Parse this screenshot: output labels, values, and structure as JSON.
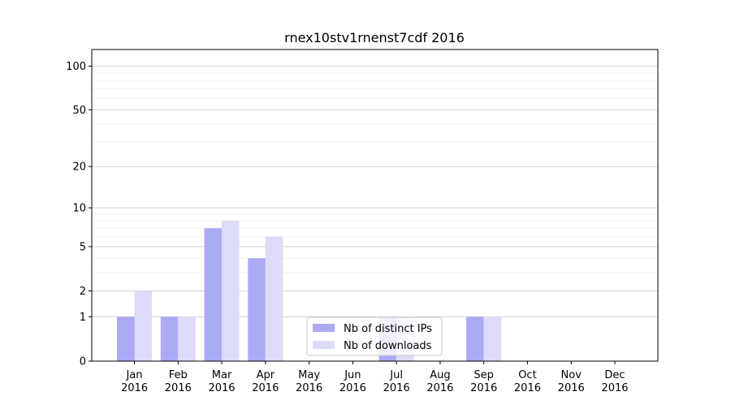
{
  "chart_data": {
    "type": "bar",
    "title": "rnex10stv1rnenst7cdf 2016",
    "xlabel": "",
    "ylabel": "",
    "y_scale": "symlog",
    "ylim": [
      0,
      130
    ],
    "y_ticks": [
      0,
      1,
      2,
      5,
      10,
      20,
      50,
      100
    ],
    "y_tick_labels": [
      "0",
      "1",
      "2",
      "5",
      "10",
      "20",
      "50",
      "100"
    ],
    "grid": "horizontal",
    "legend_position": "bottom-center",
    "categories": [
      [
        "Jan",
        "2016"
      ],
      [
        "Feb",
        "2016"
      ],
      [
        "Mar",
        "2016"
      ],
      [
        "Apr",
        "2016"
      ],
      [
        "May",
        "2016"
      ],
      [
        "Jun",
        "2016"
      ],
      [
        "Jul",
        "2016"
      ],
      [
        "Aug",
        "2016"
      ],
      [
        "Sep",
        "2016"
      ],
      [
        "Oct",
        "2016"
      ],
      [
        "Nov",
        "2016"
      ],
      [
        "Dec",
        "2016"
      ]
    ],
    "series": [
      {
        "name": "Nb of distinct IPs",
        "color": "#aaaaf5",
        "values": [
          1,
          1,
          7,
          4,
          0,
          0,
          1,
          0,
          1,
          0,
          0,
          0
        ]
      },
      {
        "name": "Nb of downloads",
        "color": "#dcdcfa",
        "values": [
          2,
          1,
          8,
          6,
          0,
          0,
          1,
          0,
          1,
          0,
          0,
          0
        ]
      }
    ]
  }
}
